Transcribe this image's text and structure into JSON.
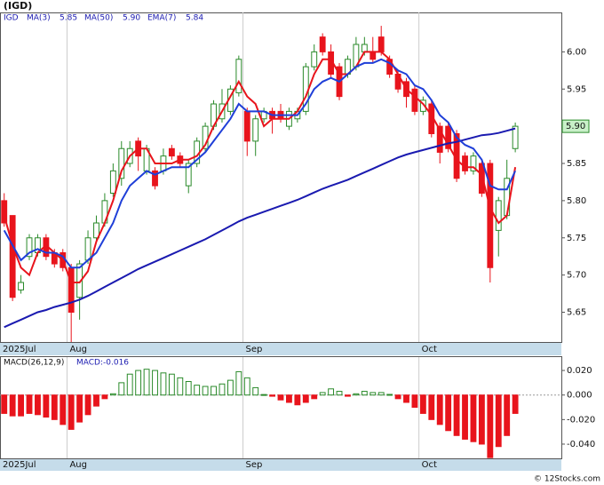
{
  "chart_data": [
    {
      "type": "candlestick",
      "title": "(IGD)",
      "ticker": "IGD",
      "xlim": [
        -0.5,
        66.5
      ],
      "xticks": [
        {
          "value": -0.5,
          "label": "2025Jul"
        },
        {
          "value": 7.5,
          "label": "Aug"
        },
        {
          "value": 28.5,
          "label": "Sep"
        },
        {
          "value": 49.5,
          "label": "Oct"
        }
      ],
      "ylim": [
        5.61,
        6.053
      ],
      "yticks": [
        {
          "value": 6.0,
          "label": "6.00"
        },
        5.95,
        {
          "value": 5.9,
          "label": "5.90"
        },
        5.85,
        {
          "value": 5.8,
          "label": "5.80"
        },
        5.75,
        {
          "value": 5.7,
          "label": "5.70"
        },
        5.65
      ],
      "up_color": "#2a8a2a",
      "down_color": "#e8141c",
      "open": [
        5.8,
        5.78,
        5.68,
        5.725,
        5.73,
        5.75,
        5.73,
        5.73,
        5.71,
        5.67,
        5.72,
        5.75,
        5.77,
        5.81,
        5.83,
        5.85,
        5.88,
        5.84,
        5.84,
        5.84,
        5.87,
        5.86,
        5.82,
        5.85,
        5.87,
        5.9,
        5.91,
        5.92,
        5.945,
        5.92,
        5.88,
        5.91,
        5.92,
        5.92,
        5.9,
        5.91,
        5.92,
        5.98,
        6.02,
        6.0,
        5.98,
        5.97,
        5.98,
        6.0,
        6.0,
        6.02,
        5.99,
        5.97,
        5.96,
        5.95,
        5.92,
        5.93,
        5.9,
        5.9,
        5.89,
        5.86,
        5.84,
        5.85,
        5.85,
        5.76,
        5.78,
        5.87
      ],
      "high": [
        5.81,
        5.78,
        5.7,
        5.755,
        5.755,
        5.755,
        5.735,
        5.735,
        5.715,
        5.72,
        5.76,
        5.78,
        5.81,
        5.85,
        5.88,
        5.88,
        5.885,
        5.875,
        5.845,
        5.87,
        5.875,
        5.865,
        5.855,
        5.885,
        5.905,
        5.935,
        5.95,
        5.955,
        5.995,
        5.925,
        5.915,
        5.925,
        5.925,
        5.93,
        5.925,
        5.925,
        5.985,
        6.01,
        6.025,
        6.01,
        5.985,
        5.995,
        6.02,
        6.02,
        6.02,
        6.035,
        5.995,
        5.975,
        5.965,
        5.955,
        5.94,
        5.935,
        5.905,
        5.905,
        5.895,
        5.865,
        5.865,
        5.855,
        5.855,
        5.805,
        5.855,
        5.905
      ],
      "low": [
        5.765,
        5.665,
        5.675,
        5.72,
        5.725,
        5.72,
        5.71,
        5.705,
        5.61,
        5.64,
        5.715,
        5.745,
        5.765,
        5.805,
        5.82,
        5.845,
        5.84,
        5.835,
        5.815,
        5.835,
        5.855,
        5.845,
        5.81,
        5.845,
        5.865,
        5.895,
        5.905,
        5.915,
        5.94,
        5.86,
        5.86,
        5.905,
        5.89,
        5.905,
        5.895,
        5.905,
        5.915,
        5.975,
        5.995,
        5.965,
        5.935,
        5.965,
        5.975,
        5.995,
        5.985,
        5.995,
        5.965,
        5.945,
        5.925,
        5.915,
        5.915,
        5.885,
        5.85,
        5.865,
        5.825,
        5.835,
        5.835,
        5.805,
        5.69,
        5.725,
        5.775,
        5.865
      ],
      "close": [
        5.77,
        5.67,
        5.69,
        5.75,
        5.75,
        5.725,
        5.715,
        5.71,
        5.65,
        5.715,
        5.75,
        5.77,
        5.8,
        5.84,
        5.87,
        5.87,
        5.86,
        5.87,
        5.82,
        5.86,
        5.86,
        5.85,
        5.85,
        5.88,
        5.9,
        5.93,
        5.93,
        5.95,
        5.99,
        5.88,
        5.91,
        5.92,
        5.91,
        5.91,
        5.92,
        5.92,
        5.98,
        6.0,
        6.0,
        5.97,
        5.94,
        5.99,
        6.01,
        6.01,
        5.99,
        6.0,
        5.97,
        5.95,
        5.94,
        5.92,
        5.935,
        5.89,
        5.865,
        5.87,
        5.83,
        5.84,
        5.86,
        5.81,
        5.71,
        5.8,
        5.83,
        5.9
      ],
      "last_price_label": "5.90",
      "overlays": [
        {
          "name": "MA(3)",
          "color": "#e8141c",
          "last_label": "5.85",
          "values": [
            5.78,
            5.74,
            5.71,
            5.7,
            5.73,
            5.74,
            5.73,
            5.72,
            5.69,
            5.69,
            5.705,
            5.745,
            5.77,
            5.8,
            5.84,
            5.86,
            5.87,
            5.87,
            5.85,
            5.85,
            5.85,
            5.855,
            5.855,
            5.86,
            5.875,
            5.9,
            5.92,
            5.94,
            5.96,
            5.94,
            5.93,
            5.9,
            5.91,
            5.91,
            5.91,
            5.92,
            5.94,
            5.97,
            5.99,
            5.99,
            5.97,
            5.97,
            5.98,
            6.0,
            6.0,
            6.0,
            5.99,
            5.97,
            5.95,
            5.94,
            5.93,
            5.915,
            5.895,
            5.875,
            5.855,
            5.845,
            5.845,
            5.835,
            5.79,
            5.77,
            5.78,
            5.845
          ]
        },
        {
          "name": "MA(50)",
          "color": "#1a1ab0",
          "last_label": "5.90",
          "values": [
            5.63,
            5.635,
            5.64,
            5.645,
            5.65,
            5.653,
            5.657,
            5.66,
            5.663,
            5.667,
            5.672,
            5.678,
            5.684,
            5.69,
            5.696,
            5.702,
            5.708,
            5.713,
            5.718,
            5.723,
            5.728,
            5.733,
            5.738,
            5.743,
            5.748,
            5.754,
            5.76,
            5.766,
            5.772,
            5.777,
            5.781,
            5.785,
            5.789,
            5.793,
            5.797,
            5.801,
            5.806,
            5.811,
            5.816,
            5.82,
            5.824,
            5.828,
            5.833,
            5.838,
            5.843,
            5.848,
            5.853,
            5.858,
            5.862,
            5.865,
            5.868,
            5.871,
            5.874,
            5.877,
            5.879,
            5.882,
            5.885,
            5.888,
            5.889,
            5.891,
            5.894,
            5.897
          ]
        },
        {
          "name": "EMA(7)",
          "color": "#1f3fd8",
          "last_label": "5.84",
          "values": [
            5.76,
            5.74,
            5.72,
            5.73,
            5.735,
            5.73,
            5.73,
            5.725,
            5.71,
            5.71,
            5.72,
            5.73,
            5.75,
            5.77,
            5.8,
            5.82,
            5.83,
            5.84,
            5.835,
            5.84,
            5.845,
            5.845,
            5.845,
            5.855,
            5.865,
            5.88,
            5.895,
            5.91,
            5.93,
            5.92,
            5.92,
            5.92,
            5.915,
            5.915,
            5.915,
            5.915,
            5.93,
            5.95,
            5.96,
            5.965,
            5.96,
            5.97,
            5.98,
            5.985,
            5.985,
            5.99,
            5.985,
            5.975,
            5.97,
            5.955,
            5.95,
            5.935,
            5.915,
            5.905,
            5.885,
            5.875,
            5.87,
            5.855,
            5.82,
            5.815,
            5.815,
            5.84
          ]
        }
      ]
    },
    {
      "type": "bar",
      "title": "MACD(26,12,9)",
      "label": "MACD:-0.016",
      "xlim": [
        -0.5,
        66.5
      ],
      "xticks": [
        {
          "value": -0.5,
          "label": "2025Jul"
        },
        {
          "value": 7.5,
          "label": "Aug"
        },
        {
          "value": 28.5,
          "label": "Sep"
        },
        {
          "value": 49.5,
          "label": "Oct"
        }
      ],
      "ylim": [
        -0.0516,
        0.0309
      ],
      "yticks": [
        {
          "value": 0.02,
          "label": "0.020"
        },
        {
          "value": 0,
          "label": "0.000"
        },
        {
          "value": -0.02,
          "label": "-0.020"
        },
        {
          "value": -0.04,
          "label": "-0.040"
        }
      ],
      "up_color": "#2a8a2a",
      "down_color": "#e8141c",
      "values": [
        -0.015,
        -0.017,
        -0.017,
        -0.015,
        -0.016,
        -0.018,
        -0.02,
        -0.024,
        -0.028,
        -0.022,
        -0.016,
        -0.009,
        -0.003,
        0.001,
        0.01,
        0.017,
        0.02,
        0.021,
        0.02,
        0.018,
        0.017,
        0.014,
        0.011,
        0.008,
        0.007,
        0.007,
        0.009,
        0.012,
        0.019,
        0.014,
        0.006,
        0.0004,
        -0.001,
        -0.004,
        -0.006,
        -0.008,
        -0.006,
        -0.003,
        0.002,
        0.005,
        0.003,
        -0.001,
        0.001,
        0.003,
        0.002,
        0.002,
        0.0005,
        -0.003,
        -0.006,
        -0.01,
        -0.015,
        -0.02,
        -0.024,
        -0.029,
        -0.033,
        -0.036,
        -0.038,
        -0.04,
        -0.051,
        -0.042,
        -0.033,
        -0.015
      ]
    }
  ],
  "footer": "© 12Stocks.com"
}
